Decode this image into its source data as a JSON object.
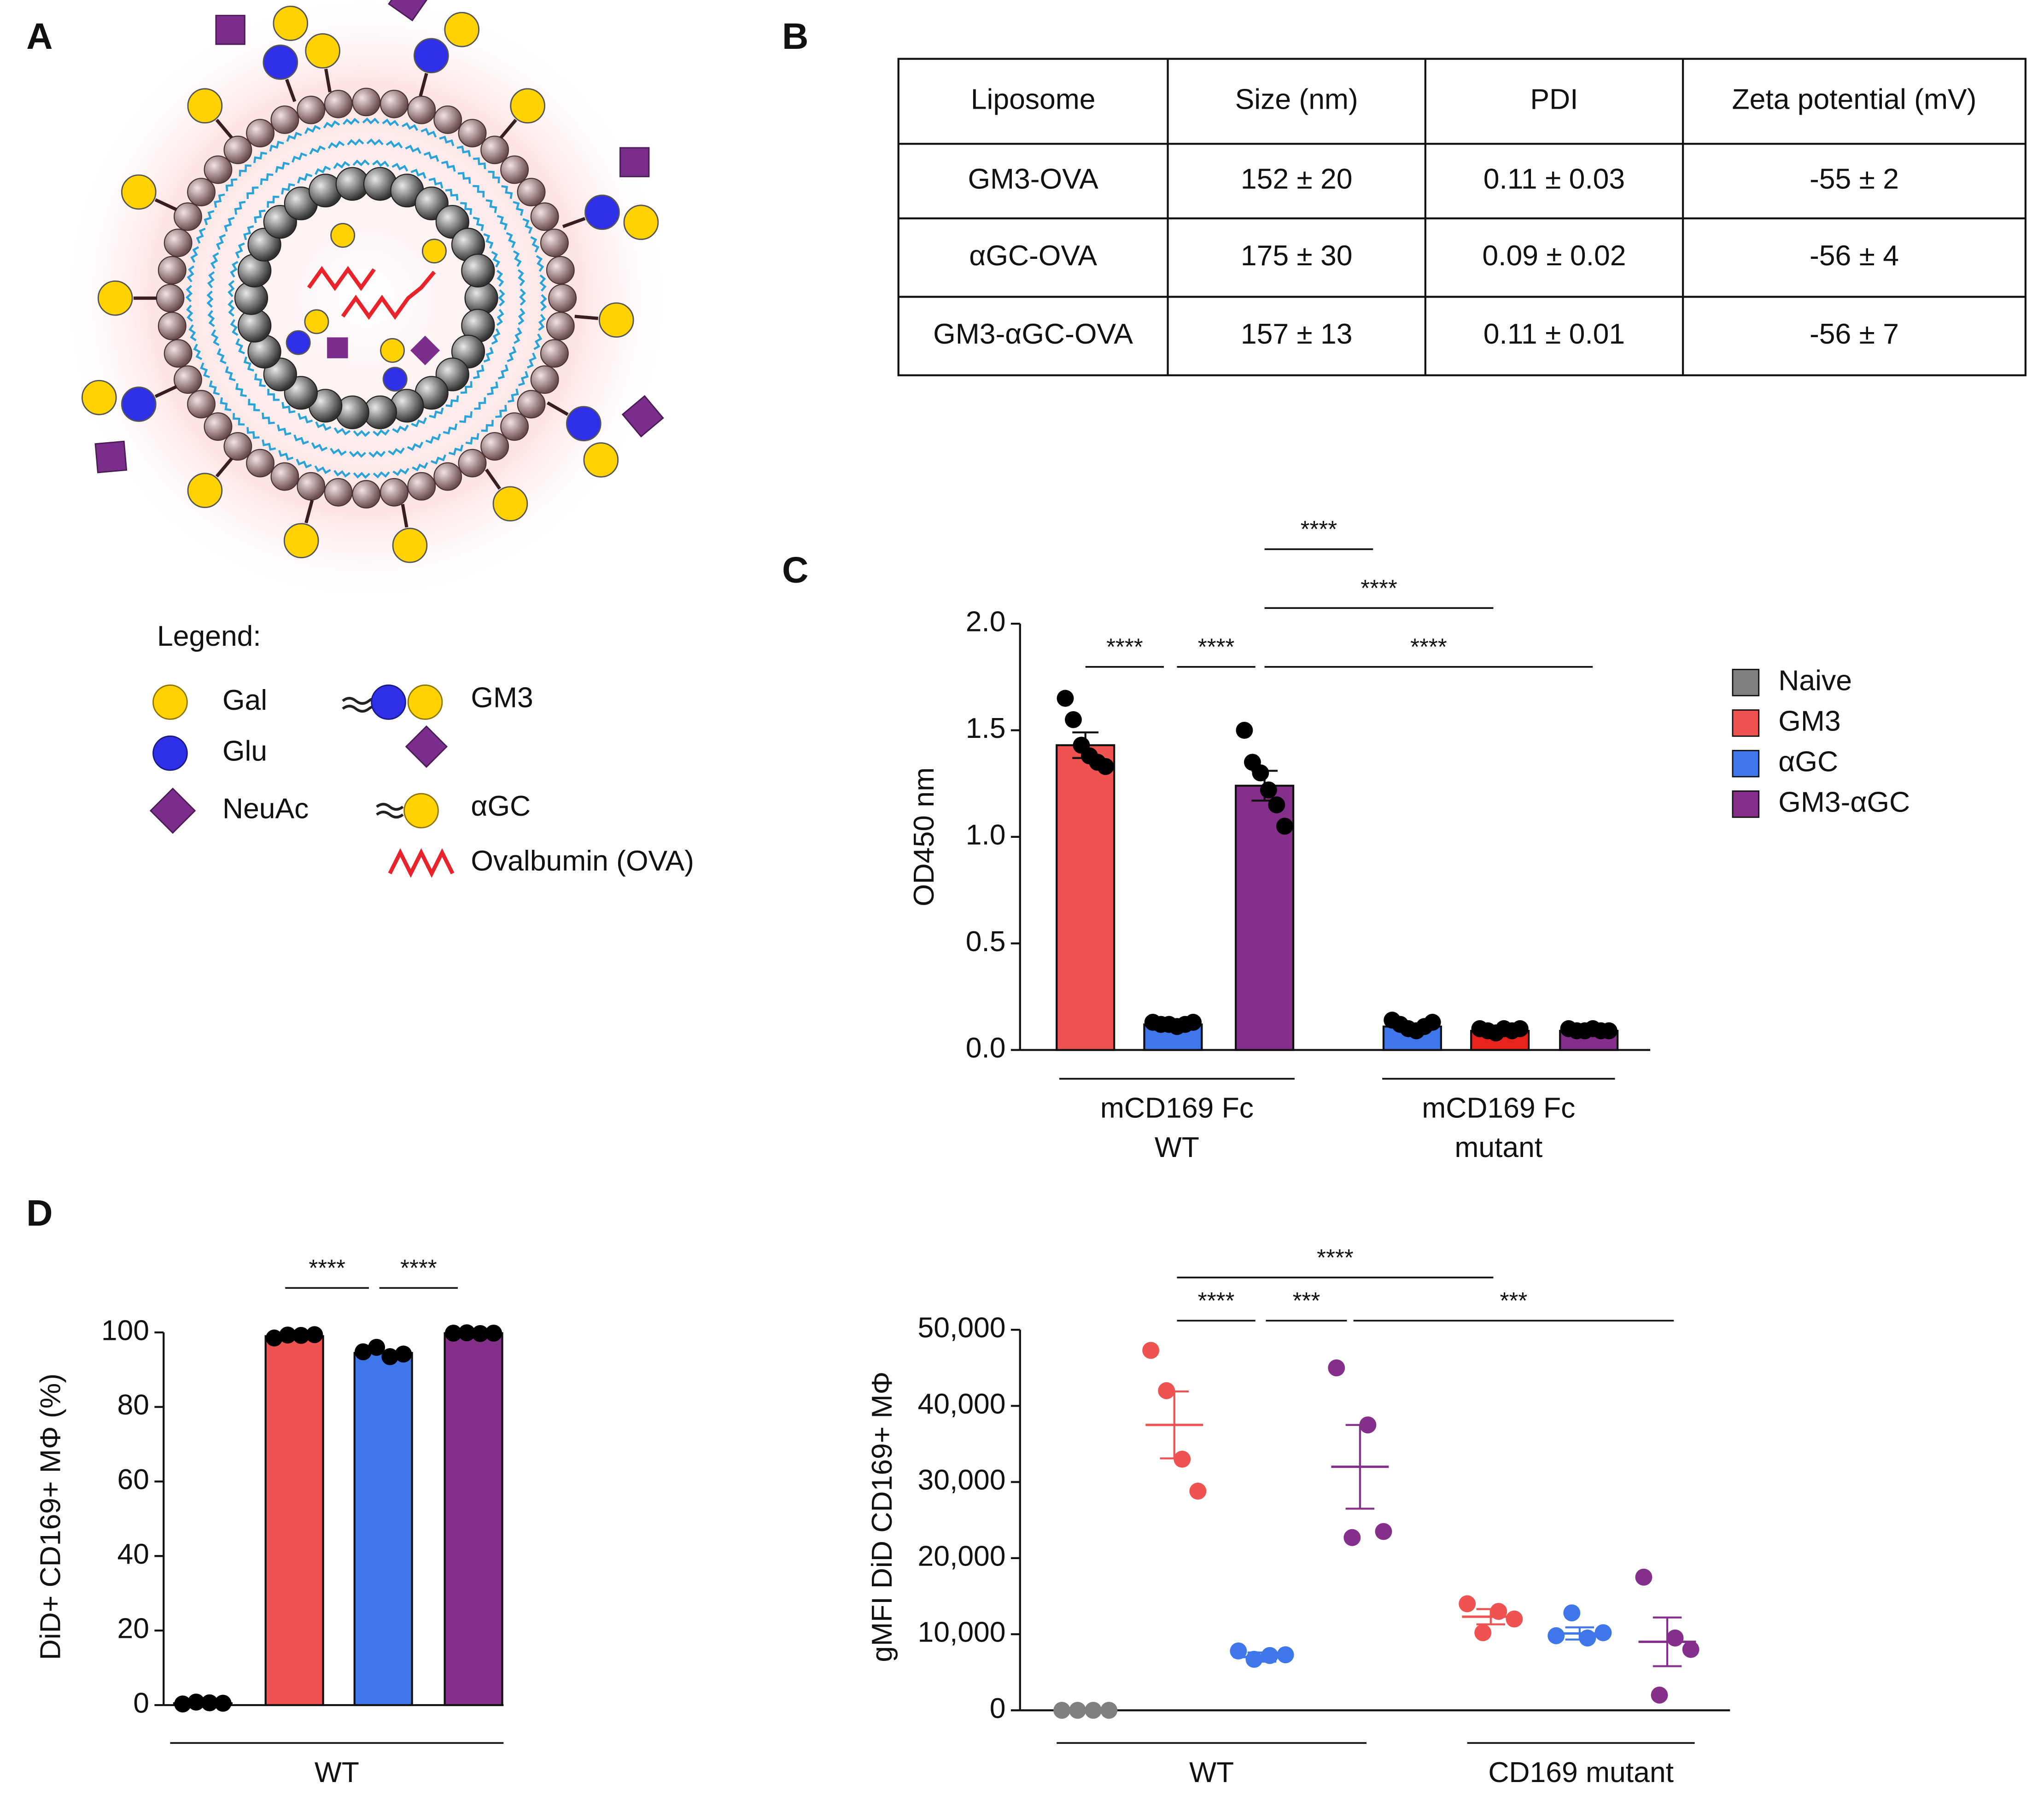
{
  "panels": {
    "a": "A",
    "b": "B",
    "c": "C",
    "d": "D"
  },
  "diagram": {
    "legend_title": "Legend:",
    "legend": [
      "Gal",
      "Glu",
      "NeuAc",
      "GM3",
      "αGC",
      "Ovalbumin (OVA)"
    ]
  },
  "table": {
    "header": [
      "Liposome",
      "Size (nm)",
      "PDI",
      "Zeta potential (mV)"
    ],
    "rows": [
      [
        "GM3-OVA",
        "152 ± 20",
        "0.11 ± 0.03",
        "-55 ± 2"
      ],
      [
        "αGC-OVA",
        "175 ± 30",
        "0.09 ± 0.02",
        "-56 ± 4"
      ],
      [
        "GM3-αGC-OVA",
        "157 ± 13",
        "0.11 ± 0.01",
        "-56 ± 7"
      ]
    ]
  },
  "chart_data": [
    {
      "type": "bar",
      "ylabel": "OD450 nm",
      "ylim": [
        0,
        2
      ],
      "yticks": [
        {
          "value": 0,
          "label": "0.0"
        },
        0.5,
        {
          "value": 1,
          "label": "1.0"
        },
        1.5,
        {
          "value": 2,
          "label": "2.0"
        }
      ],
      "legend": [
        {
          "name": "Naive",
          "color": "#808080"
        },
        {
          "name": "GM3",
          "color": "#ee5351"
        },
        {
          "name": "αGC",
          "color": "#3f77ea"
        },
        {
          "name": "GM3-αGC",
          "color": "#84308a"
        }
      ],
      "groups": [
        {
          "label": [
            "mCD169 Fc",
            "WT"
          ],
          "bars": [
            {
              "value": 1.43,
              "error": 0.06,
              "color": "#ee5351",
              "points": [
                1.65,
                1.55,
                1.43,
                1.38,
                1.35,
                1.33
              ]
            },
            {
              "value": 0.12,
              "error": 0.01,
              "color": "#3f77ea",
              "points": [
                0.13,
                0.12,
                0.12,
                0.11,
                0.12,
                0.13
              ]
            },
            {
              "value": 1.24,
              "error": 0.07,
              "color": "#84308a",
              "points": [
                1.5,
                1.35,
                1.3,
                1.22,
                1.15,
                1.05
              ]
            }
          ]
        },
        {
          "label": [
            "mCD169 Fc",
            "mutant"
          ],
          "bars": [
            {
              "value": 0.11,
              "error": 0.01,
              "color": "#3f77ea",
              "points": [
                0.14,
                0.12,
                0.1,
                0.09,
                0.11,
                0.13
              ]
            },
            {
              "value": 0.09,
              "error": 0.01,
              "color": "#e8231e",
              "points": [
                0.1,
                0.09,
                0.08,
                0.1,
                0.09,
                0.1
              ]
            },
            {
              "value": 0.09,
              "error": 0.005,
              "color": "#84308a",
              "points": [
                0.1,
                0.09,
                0.09,
                0.1,
                0.09,
                0.09
              ]
            }
          ]
        }
      ],
      "significance": [
        "****",
        "****",
        "****",
        "****",
        "****"
      ]
    },
    {
      "type": "bar",
      "ylabel": "DiD+ CD169+ MΦ (%)",
      "ylim": [
        0,
        100
      ],
      "yticks": [
        0,
        20,
        40,
        60,
        80,
        100
      ],
      "groups": [
        {
          "label": [
            "WT"
          ],
          "bars": [
            {
              "value": 0.5,
              "color": "#808080",
              "points": [
                0.3,
                0.8,
                0.6,
                0.5
              ]
            },
            {
              "value": 99,
              "color": "#ee5351",
              "points": [
                98.5,
                99.3,
                99.2,
                99.4
              ]
            },
            {
              "value": 94.5,
              "color": "#3f77ea",
              "points": [
                94.8,
                96,
                93.5,
                94.2
              ]
            },
            {
              "value": 99.8,
              "color": "#84308a",
              "points": [
                99.8,
                99.9,
                99.7,
                99.8
              ]
            }
          ]
        }
      ],
      "significance": [
        "****",
        "****"
      ]
    },
    {
      "type": "scatter",
      "ylabel": "gMFI DiD CD169+ MΦ",
      "ylim": [
        0,
        50000
      ],
      "yticks": [
        0,
        {
          "value": 10000,
          "label": "10,000"
        },
        {
          "value": 20000,
          "label": "20,000"
        },
        {
          "value": 30000,
          "label": "30,000"
        },
        {
          "value": 40000,
          "label": "40,000"
        },
        {
          "value": 50000,
          "label": "50,000"
        }
      ],
      "groups": [
        {
          "label": [
            "WT"
          ],
          "sets": [
            {
              "mean": 0,
              "sem": 0,
              "color": "#808080",
              "points": [
                0,
                0,
                0,
                0
              ]
            },
            {
              "mean": 37500,
              "sem": 4400,
              "color": "#ee5351",
              "points": [
                47300,
                42000,
                33000,
                28800
              ]
            },
            {
              "mean": 7000,
              "sem": 600,
              "color": "#3f77ea",
              "points": [
                7800,
                6700,
                7200,
                7300
              ]
            },
            {
              "mean": 32000,
              "sem": 5500,
              "color": "#84308a",
              "points": [
                45000,
                22700,
                37500,
                23500
              ]
            }
          ]
        },
        {
          "label": [
            "CD169 mutant"
          ],
          "sets": [
            {
              "mean": 12300,
              "sem": 1000,
              "color": "#ee5351",
              "points": [
                14000,
                10200,
                13000,
                12000
              ]
            },
            {
              "mean": 10100,
              "sem": 800,
              "color": "#3f77ea",
              "points": [
                9800,
                12800,
                9500,
                10200
              ]
            },
            {
              "mean": 9000,
              "sem": 3200,
              "color": "#84308a",
              "points": [
                17500,
                2000,
                9500,
                8000
              ]
            }
          ]
        }
      ],
      "significance": [
        "****",
        "****",
        "***",
        "***"
      ]
    }
  ]
}
